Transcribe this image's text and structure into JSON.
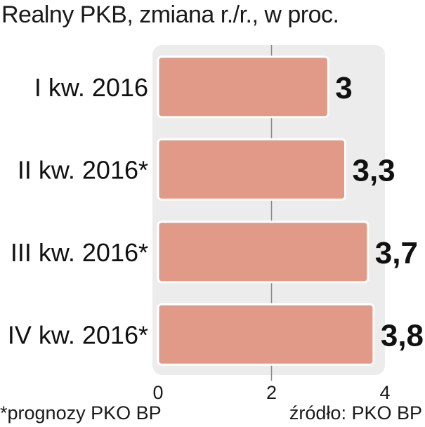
{
  "chart_data": {
    "type": "bar",
    "orientation": "horizontal",
    "title": "Realny PKB, zmiana r./r., w proc.",
    "categories": [
      "I kw. 2016",
      "II kw. 2016*",
      "III kw. 2016*",
      "IV kw. 2016*"
    ],
    "values": [
      3,
      3.3,
      3.7,
      3.8
    ],
    "value_labels": [
      "3",
      "3,3",
      "3,7",
      "3,8"
    ],
    "xlim": [
      0,
      4
    ],
    "x_ticks": [
      0,
      2,
      4
    ],
    "x_tick_labels": [
      "0",
      "2",
      "4"
    ],
    "grid": true,
    "bar_color": "#e09a87",
    "bar_border_color": "#ffffff",
    "panel_color": "#ececec"
  },
  "footnote": "*prognozy PKO BP",
  "source": "źródło: PKO BP"
}
